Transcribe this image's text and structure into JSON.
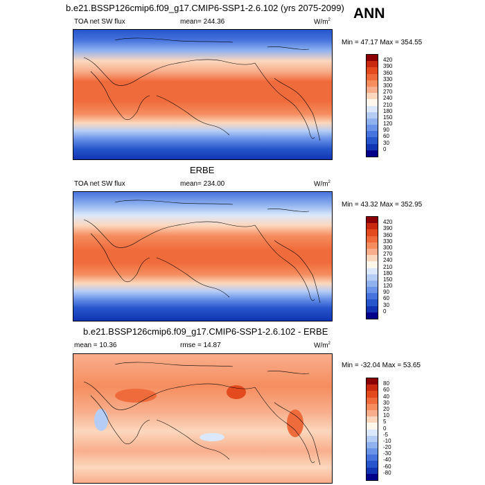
{
  "season": "ANN",
  "panels": [
    {
      "title": "b.e21.BSSP126cmip6.f09_g17.CMIP6-SSP1-2.6.102 (yrs 2075-2099)",
      "left": "TOA net SW flux",
      "center": "mean= 244.36",
      "units": "W/m",
      "units_exp": "2",
      "minmax": "Min = 47.17 Max = 354.55",
      "levels": [
        "420",
        "390",
        "360",
        "330",
        "300",
        "270",
        "240",
        "210",
        "180",
        "150",
        "120",
        "90",
        "60",
        "30",
        "0"
      ],
      "colors": [
        "#8b0000",
        "#c8290f",
        "#e34a1e",
        "#f06b3b",
        "#f58d5f",
        "#f8ae8c",
        "#fcd7bd",
        "#fff7ec",
        "#dbe8fb",
        "#b5cdf5",
        "#8fb2ef",
        "#6b93e8",
        "#4673dd",
        "#2756cc",
        "#1034b3",
        "#00008b"
      ]
    },
    {
      "title": "ERBE",
      "left": "TOA net SW flux",
      "center": "mean= 234.00",
      "units": "W/m",
      "units_exp": "2",
      "minmax": "Min = 43.32 Max = 352.95",
      "levels": [
        "420",
        "390",
        "360",
        "330",
        "300",
        "270",
        "240",
        "210",
        "180",
        "150",
        "120",
        "90",
        "60",
        "30",
        "0"
      ],
      "colors": [
        "#8b0000",
        "#c8290f",
        "#e34a1e",
        "#f06b3b",
        "#f58d5f",
        "#f8ae8c",
        "#fcd7bd",
        "#fff7ec",
        "#dbe8fb",
        "#b5cdf5",
        "#8fb2ef",
        "#6b93e8",
        "#4673dd",
        "#2756cc",
        "#1034b3",
        "#00008b"
      ]
    },
    {
      "title": "b.e21.BSSP126cmip6.f09_g17.CMIP6-SSP1-2.6.102 - ERBE",
      "left": "mean = 10.36",
      "center": "rmse = 14.87",
      "units": "W/m",
      "units_exp": "2",
      "minmax": "Min = -32.04 Max = 53.65",
      "levels": [
        "80",
        "60",
        "40",
        "30",
        "20",
        "10",
        "5",
        "0",
        "-5",
        "-10",
        "-20",
        "-30",
        "-40",
        "-60",
        "-80"
      ],
      "colors": [
        "#8b0000",
        "#c8290f",
        "#e34a1e",
        "#f06b3b",
        "#f58d5f",
        "#f8ae8c",
        "#fcd7bd",
        "#fff7ec",
        "#dbe8fb",
        "#b5cdf5",
        "#8fb2ef",
        "#6b93e8",
        "#4673dd",
        "#2756cc",
        "#1034b3",
        "#00008b"
      ]
    }
  ]
}
